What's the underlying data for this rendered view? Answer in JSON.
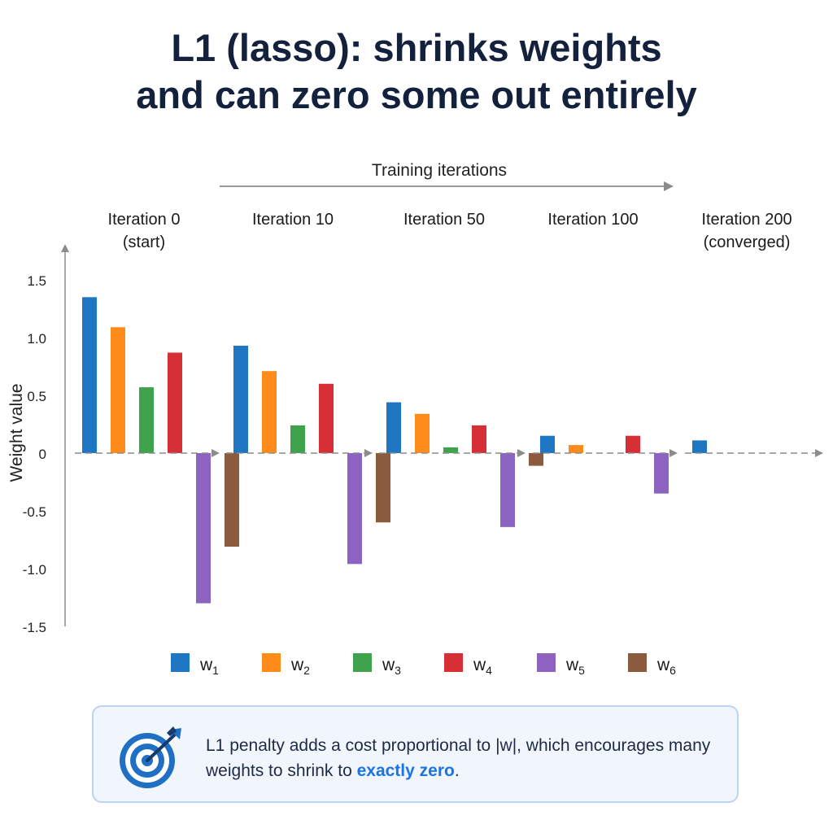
{
  "title_lines": [
    "L1 (lasso): shrinks weights",
    "and can zero some out entirely"
  ],
  "chart_data": {
    "type": "bar",
    "top_label": "Training iterations",
    "ylabel": "Weight value",
    "ylim": [
      -1.5,
      1.5
    ],
    "yticks": [
      {
        "value": 1.5,
        "label": "1.5"
      },
      {
        "value": 1.0,
        "label": "1.0"
      },
      {
        "value": 0.5,
        "label": "0.5"
      },
      {
        "value": 0,
        "label": "0"
      },
      {
        "value": -0.5,
        "label": "-0.5"
      },
      {
        "value": -1.0,
        "label": "-1.0"
      },
      {
        "value": -1.5,
        "label": "-1.5"
      }
    ],
    "groups": [
      {
        "label_lines": [
          "Iteration 0",
          "(start)"
        ],
        "values": [
          1.35,
          1.09,
          0.57,
          0.87,
          -1.3,
          -0.81
        ]
      },
      {
        "label_lines": [
          "Iteration 10"
        ],
        "values": [
          0.93,
          0.71,
          0.24,
          0.6,
          -0.96,
          -0.6
        ]
      },
      {
        "label_lines": [
          "Iteration 50"
        ],
        "values": [
          0.44,
          0.34,
          0.05,
          0.24,
          -0.64,
          -0.11
        ]
      },
      {
        "label_lines": [
          "Iteration 100"
        ],
        "values": [
          0.15,
          0.07,
          0,
          0.15,
          -0.35,
          0
        ]
      },
      {
        "label_lines": [
          "Iteration 200",
          "(converged)"
        ],
        "values": [
          0.11,
          0,
          0,
          0,
          0,
          0.08
        ]
      }
    ],
    "series": [
      {
        "base": "w",
        "sub": "1",
        "color": "#1f77c4"
      },
      {
        "base": "w",
        "sub": "2",
        "color": "#ff8c1a"
      },
      {
        "base": "w",
        "sub": "3",
        "color": "#3fa34d"
      },
      {
        "base": "w",
        "sub": "4",
        "color": "#d62f35"
      },
      {
        "base": "w",
        "sub": "5",
        "color": "#8c63c0"
      },
      {
        "base": "w",
        "sub": "6",
        "color": "#8c5a3c"
      }
    ],
    "legend_placement": "bottom",
    "grid": false
  },
  "callout": {
    "text_before": "L1 penalty adds a cost proportional to |w|, which encourages many weights to shrink to ",
    "highlight": "exactly zero",
    "text_after": ".",
    "icon": "target-icon",
    "colors": {
      "border": "#bcd3f3",
      "background": "#f1f6fd",
      "highlight": "#1a73e8"
    }
  }
}
